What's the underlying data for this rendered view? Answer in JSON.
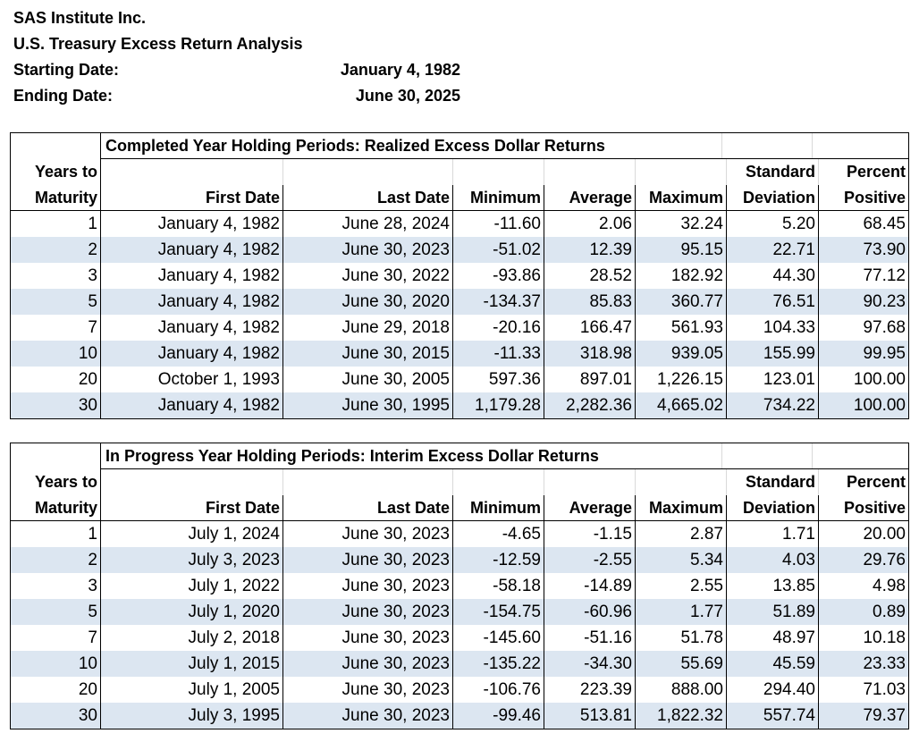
{
  "header": {
    "company": "SAS Institute Inc.",
    "report_title": "U.S. Treasury Excess Return Analysis",
    "start_label": "Starting Date:",
    "start_value": "January 4, 1982",
    "end_label": "Ending Date:",
    "end_value": "June 30, 2025"
  },
  "columns": {
    "h1": [
      "Years to",
      "",
      "",
      "",
      "",
      "",
      "Standard",
      "Percent"
    ],
    "h2": [
      "Maturity",
      "First Date",
      "Last Date",
      "Minimum",
      "Average",
      "Maximum",
      "Deviation",
      "Positive"
    ]
  },
  "table1": {
    "title": "Completed  Year Holding Periods: Realized Excess Dollar Returns",
    "rows": [
      [
        "1",
        "January 4, 1982",
        "June 28, 2024",
        "-11.60",
        "2.06",
        "32.24",
        "5.20",
        "68.45"
      ],
      [
        "2",
        "January 4, 1982",
        "June 30, 2023",
        "-51.02",
        "12.39",
        "95.15",
        "22.71",
        "73.90"
      ],
      [
        "3",
        "January 4, 1982",
        "June 30, 2022",
        "-93.86",
        "28.52",
        "182.92",
        "44.30",
        "77.12"
      ],
      [
        "5",
        "January 4, 1982",
        "June 30, 2020",
        "-134.37",
        "85.83",
        "360.77",
        "76.51",
        "90.23"
      ],
      [
        "7",
        "January 4, 1982",
        "June 29, 2018",
        "-20.16",
        "166.47",
        "561.93",
        "104.33",
        "97.68"
      ],
      [
        "10",
        "January 4, 1982",
        "June 30, 2015",
        "-11.33",
        "318.98",
        "939.05",
        "155.99",
        "99.95"
      ],
      [
        "20",
        "October 1, 1993",
        "June 30, 2005",
        "597.36",
        "897.01",
        "1,226.15",
        "123.01",
        "100.00"
      ],
      [
        "30",
        "January 4, 1982",
        "June 30, 1995",
        "1,179.28",
        "2,282.36",
        "4,665.02",
        "734.22",
        "100.00"
      ]
    ]
  },
  "table2": {
    "title": "In Progress  Year Holding Periods: Interim Excess Dollar Returns",
    "rows": [
      [
        "1",
        "July 1, 2024",
        "June 30, 2023",
        "-4.65",
        "-1.15",
        "2.87",
        "1.71",
        "20.00"
      ],
      [
        "2",
        "July 3, 2023",
        "June 30, 2023",
        "-12.59",
        "-2.55",
        "5.34",
        "4.03",
        "29.76"
      ],
      [
        "3",
        "July 1, 2022",
        "June 30, 2023",
        "-58.18",
        "-14.89",
        "2.55",
        "13.85",
        "4.98"
      ],
      [
        "5",
        "July 1, 2020",
        "June 30, 2023",
        "-154.75",
        "-60.96",
        "1.77",
        "51.89",
        "0.89"
      ],
      [
        "7",
        "July 2, 2018",
        "June 30, 2023",
        "-145.60",
        "-51.16",
        "51.78",
        "48.97",
        "10.18"
      ],
      [
        "10",
        "July 1, 2015",
        "June 30, 2023",
        "-135.22",
        "-34.30",
        "55.69",
        "45.59",
        "23.33"
      ],
      [
        "20",
        "July 1, 2005",
        "June 30, 2023",
        "-106.76",
        "223.39",
        "888.00",
        "294.40",
        "71.03"
      ],
      [
        "30",
        "July 3, 1995",
        "June 30, 2023",
        "-99.46",
        "513.81",
        "1,822.32",
        "557.74",
        "79.37"
      ]
    ]
  },
  "colors": {
    "band": "#dce6f1",
    "border": "#000000",
    "gridline": "#d9d9d9"
  }
}
